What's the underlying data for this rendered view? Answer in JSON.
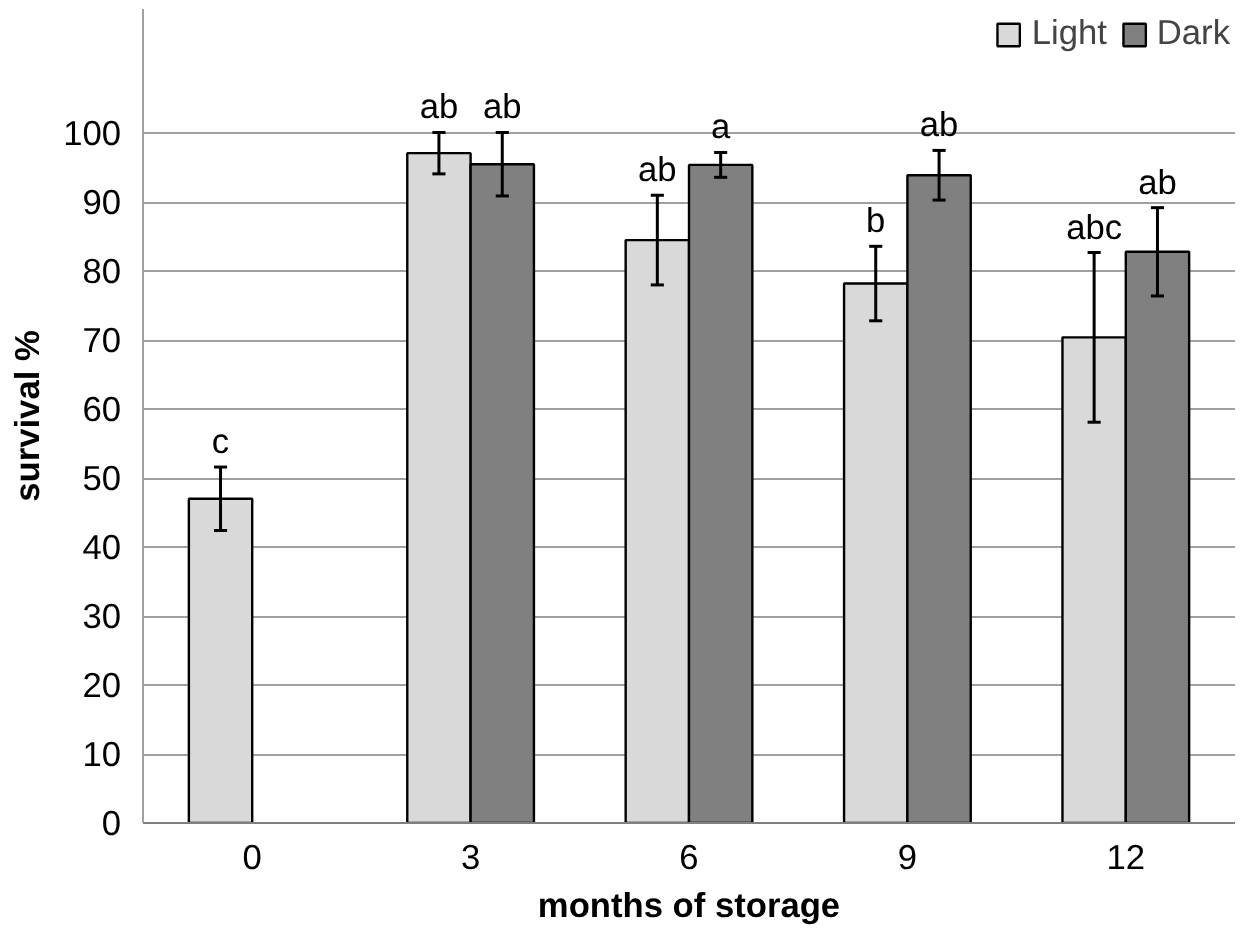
{
  "chart_data": {
    "type": "bar",
    "xlabel": "months of storage",
    "ylabel": "survival %",
    "categories": [
      "0",
      "3",
      "6",
      "9",
      "12"
    ],
    "series": [
      {
        "name": "Light",
        "color": "#d9d9d9",
        "values": [
          47.0,
          97.1,
          84.5,
          78.2,
          70.4
        ],
        "errors": [
          4.6,
          3,
          6.5,
          5.4,
          12.3
        ],
        "value_labels": [
          "c",
          "ab",
          "ab",
          "b",
          "abc"
        ]
      },
      {
        "name": "Dark",
        "color": "#808080",
        "values": [
          null,
          95.5,
          95.4,
          93.9,
          82.8
        ],
        "errors": [
          null,
          4.6,
          1.8,
          3.6,
          6.4
        ],
        "value_labels": [
          null,
          "ab",
          "a",
          "ab",
          "ab"
        ]
      }
    ],
    "ylim": [
      0,
      118
    ],
    "yticks": [
      0,
      10,
      20,
      30,
      40,
      50,
      60,
      70,
      80,
      90,
      100
    ],
    "grid": "y",
    "legend": "top right"
  }
}
